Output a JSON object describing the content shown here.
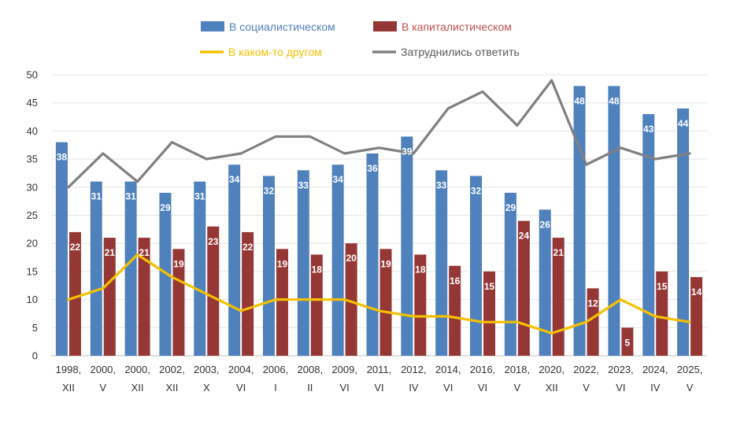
{
  "chart_data": {
    "type": "bar",
    "categories": [
      [
        "1998,",
        "XII"
      ],
      [
        "2000,",
        "V"
      ],
      [
        "2000,",
        "XII"
      ],
      [
        "2002,",
        "XII"
      ],
      [
        "2003,",
        "X"
      ],
      [
        "2004,",
        "VI"
      ],
      [
        "2006,",
        "I"
      ],
      [
        "2008,",
        "II"
      ],
      [
        "2009,",
        "VI"
      ],
      [
        "2011,",
        "VI"
      ],
      [
        "2012,",
        "IV"
      ],
      [
        "2014,",
        "VI"
      ],
      [
        "2016,",
        "VI"
      ],
      [
        "2018,",
        "V"
      ],
      [
        "2020,",
        "XII"
      ],
      [
        "2022,",
        "V"
      ],
      [
        "2023,",
        "VI"
      ],
      [
        "2024,",
        "IV"
      ],
      [
        "2025,",
        "V"
      ]
    ],
    "ylim": [
      0,
      50
    ],
    "yticks": [
      0,
      5,
      10,
      15,
      20,
      25,
      30,
      35,
      40,
      45,
      50
    ],
    "grid": true,
    "legend_position": "top",
    "series": [
      {
        "name": "В социалистическом",
        "kind": "bar",
        "color": "#4f81bd",
        "text_color": "#4f81bd",
        "values": [
          38,
          31,
          31,
          29,
          31,
          34,
          32,
          33,
          34,
          36,
          39,
          33,
          32,
          29,
          26,
          48,
          48,
          43,
          44
        ]
      },
      {
        "name": "В капиталистическом",
        "kind": "bar",
        "color": "#953735",
        "text_color": "#c0504d",
        "values": [
          22,
          21,
          21,
          19,
          23,
          22,
          19,
          18,
          20,
          19,
          18,
          16,
          15,
          24,
          21,
          12,
          5,
          15,
          14
        ]
      },
      {
        "name": "В каком-то другом",
        "kind": "line",
        "color": "#f5c000",
        "text_color": "#f5c000",
        "values": [
          10,
          12,
          18,
          14,
          11,
          8,
          10,
          10,
          10,
          8,
          7,
          7,
          6,
          6,
          4,
          6,
          10,
          7,
          6
        ]
      },
      {
        "name": "Затруднились ответить",
        "kind": "line",
        "color": "#808080",
        "text_color": "#595959",
        "values": [
          30,
          36,
          31,
          38,
          35,
          36,
          39,
          39,
          36,
          37,
          36,
          44,
          47,
          41,
          49,
          34,
          37,
          35,
          36
        ]
      }
    ]
  }
}
